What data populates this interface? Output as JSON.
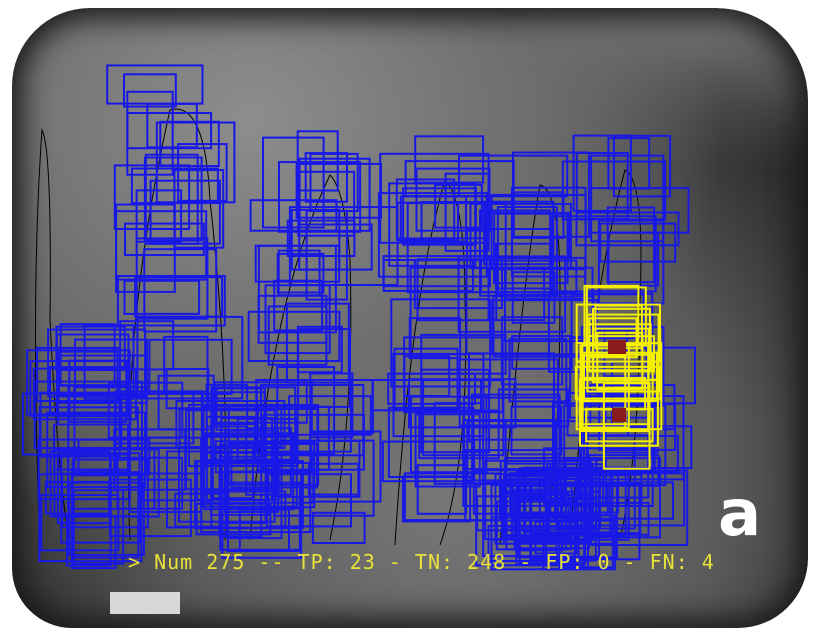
{
  "figure": {
    "panel_letter": "a",
    "stats_line": "> Num 275 -- TP: 23 - TN: 248 - FP: 0 - FN: 4"
  },
  "colors": {
    "detection_box": "#1818e6",
    "highlight_box": "#f5f000",
    "caption_text": "#e8e23a",
    "tooth_outline": "#000000"
  }
}
